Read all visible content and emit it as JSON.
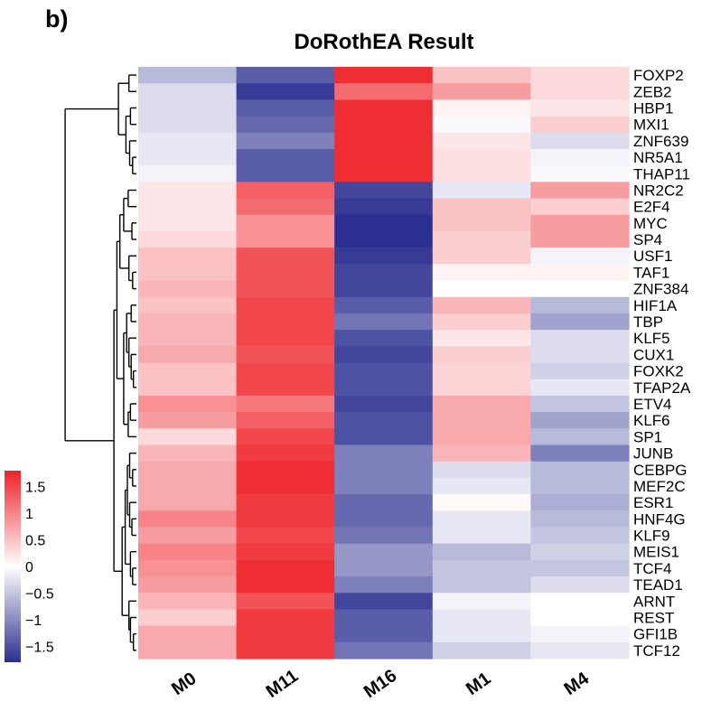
{
  "panel_label": "b)",
  "chart_data": {
    "type": "heatmap",
    "title": "DoRothEA Result",
    "columns": [
      "M0",
      "M11",
      "M16",
      "M1",
      "M4"
    ],
    "rows": [
      "FOXP2",
      "ZEB2",
      "HBP1",
      "MXI1",
      "ZNF639",
      "NR5A1",
      "THAP11",
      "NR2C2",
      "E2F4",
      "MYC",
      "SP4",
      "USF1",
      "TAF1",
      "ZNF384",
      "HIF1A",
      "TBP",
      "KLF5",
      "CUX1",
      "FOXK2",
      "TFAP2A",
      "ETV4",
      "KLF6",
      "SP1",
      "JUNB",
      "CEBPG",
      "MEF2C",
      "ESR1",
      "HNF4G",
      "KLF9",
      "MEIS1",
      "TCF4",
      "TEAD1",
      "ARNT",
      "REST",
      "GFI1B",
      "TCF12"
    ],
    "values": [
      [
        -0.6,
        -1.4,
        1.7,
        0.5,
        0.3
      ],
      [
        -0.3,
        -1.7,
        1.2,
        0.8,
        0.3
      ],
      [
        -0.3,
        -1.4,
        1.7,
        0.1,
        0.2
      ],
      [
        -0.3,
        -1.3,
        1.7,
        -0.05,
        0.4
      ],
      [
        -0.2,
        -1.1,
        1.7,
        0.2,
        -0.3
      ],
      [
        -0.2,
        -1.4,
        1.7,
        0.25,
        -0.1
      ],
      [
        -0.1,
        -1.4,
        1.7,
        0.25,
        -0.05
      ],
      [
        0.2,
        1.3,
        -1.6,
        -0.2,
        0.8
      ],
      [
        0.2,
        1.2,
        -1.7,
        0.5,
        0.4
      ],
      [
        0.2,
        0.9,
        -1.8,
        0.5,
        0.8
      ],
      [
        0.3,
        0.9,
        -1.8,
        0.4,
        0.8
      ],
      [
        0.5,
        1.4,
        -1.7,
        0.4,
        -0.1
      ],
      [
        0.5,
        1.4,
        -1.6,
        0.1,
        0.1
      ],
      [
        0.6,
        1.4,
        -1.6,
        0.0,
        0.0
      ],
      [
        0.5,
        1.5,
        -1.4,
        0.6,
        -0.6
      ],
      [
        0.6,
        1.5,
        -1.2,
        0.4,
        -0.8
      ],
      [
        0.6,
        1.5,
        -1.5,
        0.2,
        -0.3
      ],
      [
        0.7,
        1.4,
        -1.6,
        0.4,
        -0.3
      ],
      [
        0.5,
        1.5,
        -1.5,
        0.35,
        -0.4
      ],
      [
        0.5,
        1.5,
        -1.5,
        0.35,
        -0.2
      ],
      [
        0.9,
        1.1,
        -1.6,
        0.7,
        -0.5
      ],
      [
        0.8,
        1.3,
        -1.5,
        0.7,
        -0.8
      ],
      [
        0.3,
        1.5,
        -1.5,
        0.7,
        -0.6
      ],
      [
        0.6,
        1.6,
        -1.1,
        0.6,
        -1.1
      ],
      [
        0.7,
        1.7,
        -1.1,
        -0.3,
        -0.6
      ],
      [
        0.7,
        1.7,
        -1.1,
        -0.2,
        -0.6
      ],
      [
        0.7,
        1.6,
        -1.3,
        0.05,
        -0.7
      ],
      [
        1.0,
        1.6,
        -1.3,
        -0.2,
        -0.6
      ],
      [
        0.8,
        1.5,
        -1.2,
        -0.2,
        -0.5
      ],
      [
        1.0,
        1.6,
        -0.9,
        -0.6,
        -0.4
      ],
      [
        0.9,
        1.7,
        -0.9,
        -0.5,
        -0.5
      ],
      [
        0.8,
        1.7,
        -1.1,
        -0.5,
        -0.3
      ],
      [
        0.6,
        1.4,
        -1.6,
        -0.1,
        0.0
      ],
      [
        0.4,
        1.6,
        -1.4,
        -0.2,
        0.0
      ],
      [
        0.7,
        1.6,
        -1.4,
        -0.2,
        -0.1
      ],
      [
        0.7,
        1.6,
        -1.2,
        -0.4,
        -0.2
      ]
    ],
    "color_scale": {
      "ticks": [
        1.5,
        1,
        0.5,
        0,
        -0.5,
        -1,
        -1.5
      ],
      "tick_labels": [
        "1.5",
        "1",
        "0.5",
        "0",
        "−0.5",
        "−1",
        "−1.5"
      ],
      "range": [
        -1.8,
        1.8
      ],
      "low_color": "#2B2F8F",
      "mid_color": "#FFFFFF",
      "high_color": "#EE2228"
    },
    "legend_placement": "bottom-left",
    "row_dendrogram": true,
    "xlabel": "",
    "ylabel": ""
  }
}
